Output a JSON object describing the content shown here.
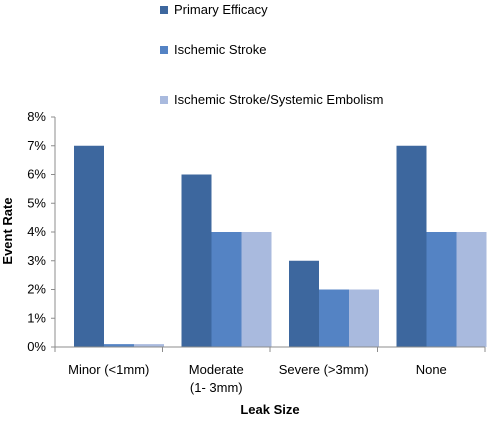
{
  "chart_data": {
    "type": "bar",
    "title": "",
    "xlabel": "Leak Size",
    "ylabel": "Event Rate",
    "ylim": [
      0,
      8
    ],
    "yticks": [
      "0%",
      "1%",
      "2%",
      "3%",
      "4%",
      "5%",
      "6%",
      "7%",
      "8%"
    ],
    "grid": false,
    "legend_position": "top",
    "categories": [
      [
        "Minor (<1mm)"
      ],
      [
        "Moderate",
        "(1- 3mm)"
      ],
      [
        "Severe (>3mm)"
      ],
      [
        "None"
      ]
    ],
    "series": [
      {
        "name": "Primary Efficacy",
        "color": "#3d679e",
        "values": [
          7,
          6,
          3,
          7
        ]
      },
      {
        "name": "Ischemic Stroke",
        "color": "#5483c4",
        "values": [
          0.1,
          4,
          2,
          4
        ]
      },
      {
        "name": "Ischemic Stroke/Systemic Embolism",
        "color": "#a9bade",
        "values": [
          0.1,
          4,
          2,
          4
        ]
      }
    ]
  }
}
